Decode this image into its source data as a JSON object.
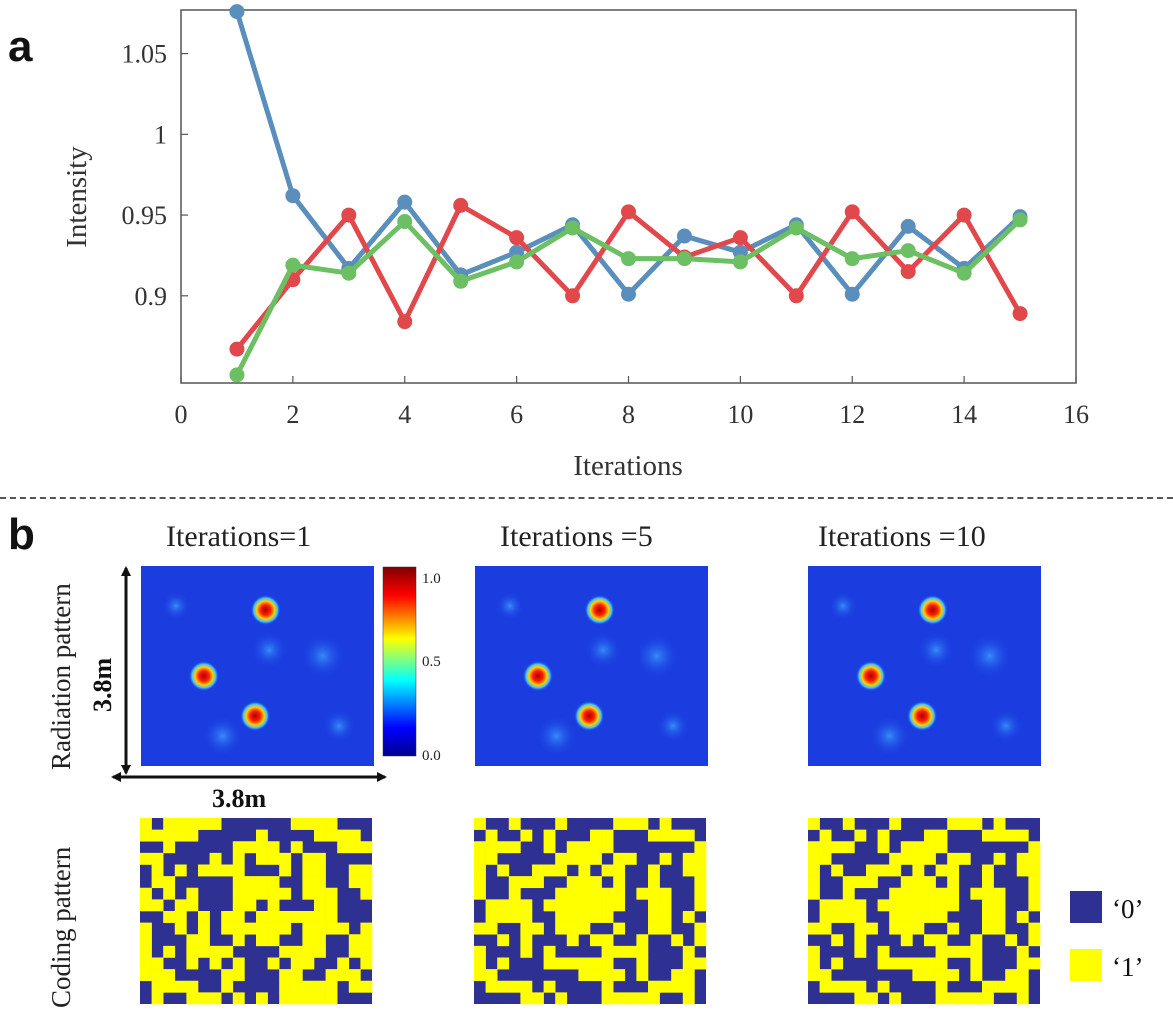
{
  "panels": {
    "a_label": "a",
    "b_label": "b"
  },
  "chart_data": {
    "type": "line",
    "xlabel": "Iterations",
    "ylabel": "Intensity",
    "xlim": [
      0,
      16
    ],
    "ylim": [
      0.846,
      1.077
    ],
    "x_ticks": [
      0,
      2,
      4,
      6,
      8,
      10,
      12,
      14,
      16
    ],
    "x_tick_labels": [
      "0",
      "2",
      "4",
      "6",
      "8",
      "10",
      "12",
      "14",
      "16"
    ],
    "y_ticks": [
      0.9,
      0.95,
      1,
      1.05
    ],
    "y_tick_labels": [
      "0.9",
      "0.95",
      "1",
      "1.05"
    ],
    "grid": false,
    "x": [
      1,
      2,
      3,
      4,
      5,
      6,
      7,
      8,
      9,
      10,
      11,
      12,
      13,
      14,
      15
    ],
    "series": [
      {
        "color": "#5a8fbd",
        "values": [
          1.076,
          0.962,
          0.917,
          0.958,
          0.913,
          0.927,
          0.944,
          0.901,
          0.937,
          0.927,
          0.944,
          0.901,
          0.943,
          0.917,
          0.949
        ]
      },
      {
        "color": "#e0484b",
        "values": [
          0.867,
          0.91,
          0.95,
          0.884,
          0.956,
          0.936,
          0.9,
          0.952,
          0.924,
          0.936,
          0.9,
          0.952,
          0.915,
          0.95,
          0.889
        ]
      },
      {
        "color": "#6cbf62",
        "values": [
          0.851,
          0.919,
          0.914,
          0.946,
          0.909,
          0.921,
          0.942,
          0.923,
          0.923,
          0.921,
          0.942,
          0.923,
          0.928,
          0.914,
          0.947
        ]
      }
    ]
  },
  "panel_b": {
    "columns": [
      {
        "title": "Iterations=1"
      },
      {
        "title": "Iterations =5"
      },
      {
        "title": "Iterations =10"
      }
    ],
    "row_labels": {
      "radiation": "Radiation pattern",
      "coding": "Coding pattern"
    },
    "dimension_labels": {
      "vertical": "3.8m",
      "horizontal": "3.8m"
    },
    "colorbar": {
      "tick_labels": [
        "1.0",
        "0.5",
        "0.0"
      ],
      "stops": [
        "#00008f",
        "#0000ff",
        "#00ffff",
        "#ffff00",
        "#ff0000",
        "#800000"
      ]
    },
    "heatmap_colors": {
      "background": "#1b3de0",
      "hot": "#c00000",
      "ring": "#ffd700"
    },
    "coding_colors": {
      "zero": "#2e3192",
      "one": "#ffff00"
    },
    "legend": [
      {
        "label": "‘0’",
        "color": "#2e3192"
      },
      {
        "label": "‘1’",
        "color": "#ffff00"
      }
    ]
  }
}
